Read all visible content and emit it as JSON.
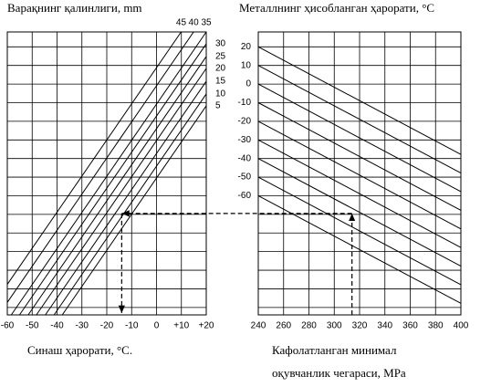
{
  "chart_data": [
    {
      "type": "line",
      "title": "Варақнинг қалинлиги, mm",
      "xlabel": "Синаш ҳарорати, °C.",
      "xlim": [
        -60,
        20
      ],
      "xticks": [
        -60,
        -50,
        -40,
        -30,
        -20,
        -10,
        0,
        {
          "value": 10,
          "label": "+10"
        },
        {
          "value": 20,
          "label": "+20"
        }
      ],
      "ylim": [
        -124,
        28
      ],
      "grid": true,
      "color": "#000000",
      "series": [
        {
          "name": "45",
          "x": [
            -60,
            9.9
          ],
          "values": [
            -107.6,
            28
          ]
        },
        {
          "name": "40",
          "x": [
            -60,
            14.9
          ],
          "values": [
            -117.3,
            28
          ]
        },
        {
          "name": "35",
          "x": [
            -58.4,
            20
          ],
          "values": [
            -124,
            28
          ]
        },
        {
          "name": "30",
          "x": [
            -55.1,
            20
          ],
          "values": [
            -124,
            21.6
          ]
        },
        {
          "name": "25",
          "x": [
            -51.6,
            20
          ],
          "values": [
            -124,
            14.8
          ]
        },
        {
          "name": "20",
          "x": [
            -48.3,
            20
          ],
          "values": [
            -124,
            8.4
          ]
        },
        {
          "name": "15",
          "x": [
            -44.7,
            20
          ],
          "values": [
            -124,
            1.5
          ]
        },
        {
          "name": "10",
          "x": [
            -41.2,
            20
          ],
          "values": [
            -124,
            -5.3
          ]
        },
        {
          "name": "5",
          "x": [
            -37.9,
            20
          ],
          "values": [
            -124,
            -11.7
          ]
        }
      ],
      "guide": {
        "x": -14,
        "y": -69.5
      }
    },
    {
      "type": "line",
      "title": "Металлнинг  ҳисобланган ҳарорати, °C",
      "xlabel": [
        "Кафолатланган минимал",
        "оқувчанлик чегараси, МРа"
      ],
      "xlim": [
        240,
        400
      ],
      "xticks": [
        240,
        260,
        280,
        300,
        320,
        340,
        360,
        380,
        400
      ],
      "ylim": [
        -124,
        28
      ],
      "yticks": [
        20,
        10,
        0,
        -10,
        -20,
        -30,
        -40,
        -50,
        -60
      ],
      "ygrid": [
        20,
        10,
        0,
        -10,
        -20,
        -30,
        -40,
        -50,
        -60,
        -70,
        -80,
        -90,
        -100,
        -110,
        -120
      ],
      "grid": true,
      "color": "#000000",
      "series": [
        {
          "x": [
            240,
            400
          ],
          "values": [
            20,
            -37.8
          ]
        },
        {
          "x": [
            240,
            400
          ],
          "values": [
            10,
            -47.8
          ]
        },
        {
          "x": [
            240,
            400
          ],
          "values": [
            0,
            -57.8
          ]
        },
        {
          "x": [
            240,
            400
          ],
          "values": [
            -10,
            -67.8
          ]
        },
        {
          "x": [
            240,
            400
          ],
          "values": [
            -20,
            -77.8
          ]
        },
        {
          "x": [
            240,
            400
          ],
          "values": [
            -30,
            -87.8
          ]
        },
        {
          "x": [
            240,
            400
          ],
          "values": [
            -40,
            -97.8
          ]
        },
        {
          "x": [
            240,
            400
          ],
          "values": [
            -50,
            -107.8
          ]
        },
        {
          "x": [
            240,
            400
          ],
          "values": [
            -60,
            -117.8
          ]
        }
      ],
      "guide": {
        "x": 314,
        "y": -69.5
      }
    }
  ]
}
